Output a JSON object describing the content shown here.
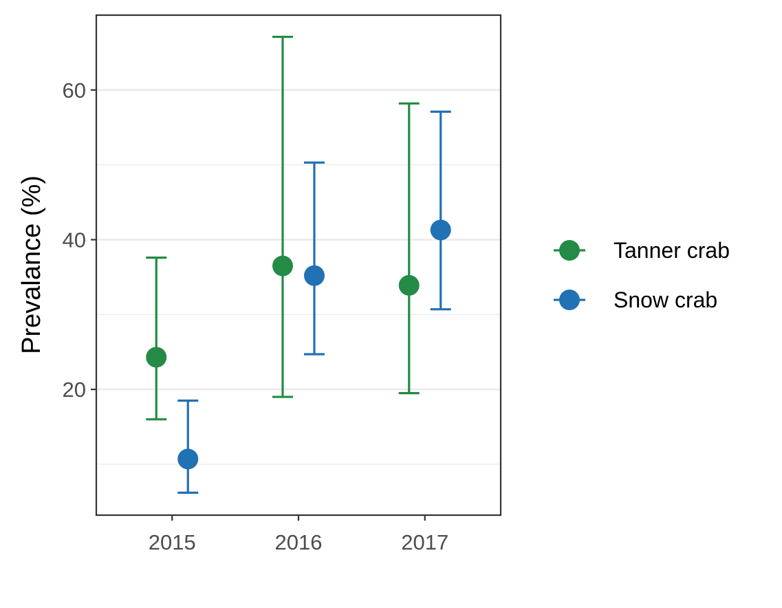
{
  "chart_data": {
    "type": "scatter",
    "title": "",
    "xlabel": "",
    "ylabel": "Prevalance (%)",
    "categories": [
      "2015",
      "2016",
      "2017"
    ],
    "ylim": [
      3.2,
      70
    ],
    "y_ticks": [
      20,
      40,
      60
    ],
    "y_minor_ticks": [
      10,
      30,
      50
    ],
    "grid": true,
    "legend_position": "right",
    "series": [
      {
        "name": "Tanner crab",
        "color": "#238b45",
        "values": [
          24.3,
          36.5,
          33.9
        ],
        "lower": [
          16.0,
          19.0,
          19.5
        ],
        "upper": [
          37.6,
          67.1,
          58.2
        ]
      },
      {
        "name": "Snow crab",
        "color": "#2171b5",
        "values": [
          10.7,
          35.2,
          41.3
        ],
        "lower": [
          6.2,
          24.7,
          30.7
        ],
        "upper": [
          18.5,
          50.3,
          57.1
        ]
      }
    ]
  }
}
